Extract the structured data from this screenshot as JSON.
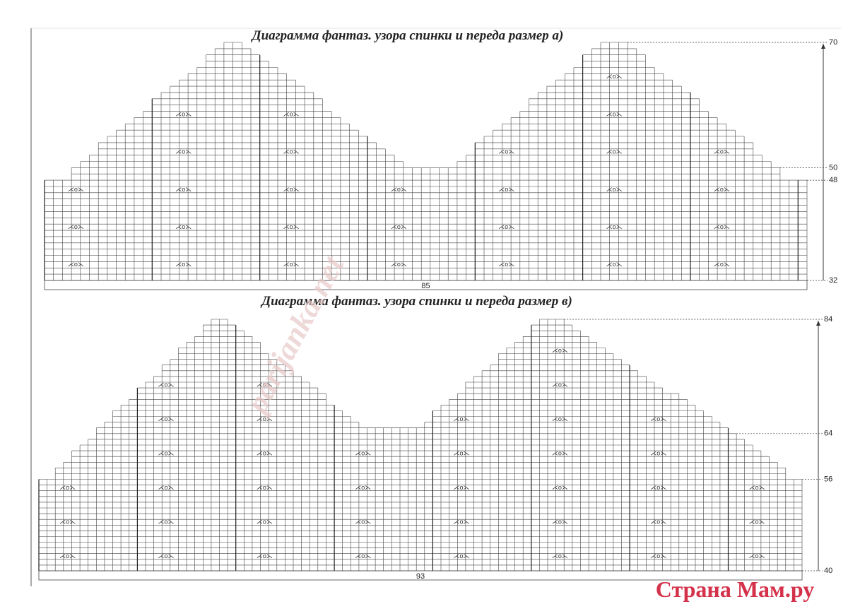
{
  "charts": [
    {
      "title": "Диаграмма фантаз. узора спинки и переда размер а)",
      "width_label": "85",
      "row_labels": [
        "70",
        "50",
        "48",
        "32"
      ]
    },
    {
      "title": "Диаграмма фантаз. узора спинки и переда размер в)",
      "width_label": "93",
      "row_labels": [
        "84",
        "64",
        "56",
        "40"
      ]
    }
  ],
  "watermark": "parijanka.net",
  "logo": "Страна Мам.ру"
}
